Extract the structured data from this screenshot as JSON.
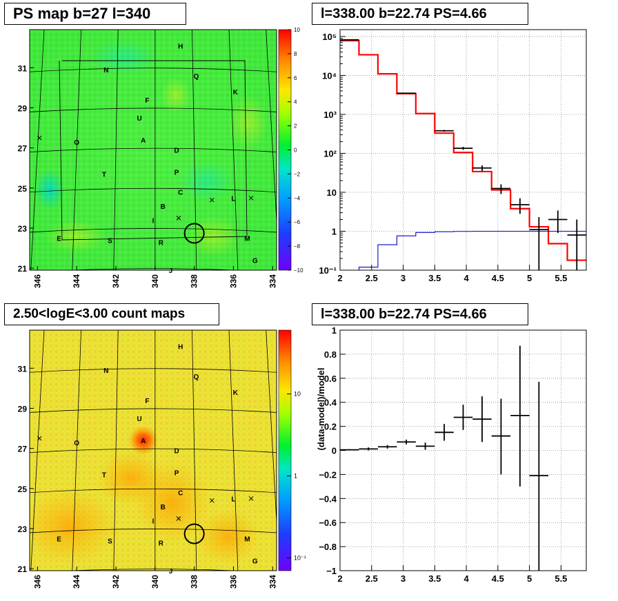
{
  "panels": {
    "ps_map": {
      "title": "PS map b=27 l=340",
      "x_ticks": [
        "346",
        "344",
        "342",
        "340",
        "338",
        "336",
        "334"
      ],
      "y_ticks": [
        "31",
        "29",
        "27",
        "25",
        "23",
        "21"
      ],
      "colorbar_ticks": [
        "10",
        "8",
        "6",
        "4",
        "2",
        "0",
        "−2",
        "−4",
        "−6",
        "−8",
        "−10"
      ]
    },
    "count_map": {
      "title": "2.50<logE<3.00 count maps",
      "x_ticks": [
        "346",
        "344",
        "342",
        "340",
        "338",
        "336",
        "334"
      ],
      "y_ticks": [
        "31",
        "29",
        "27",
        "25",
        "23",
        "21"
      ],
      "colorbar_ticks": [
        "10",
        "1",
        "10⁻¹"
      ]
    },
    "spectrum": {
      "title": "l=338.00 b=22.74 PS=4.66"
    },
    "residual": {
      "title": "l=338.00 b=22.74 PS=4.66"
    }
  },
  "map_labels": [
    {
      "name": "H",
      "l": 338.7,
      "b": 32.1
    },
    {
      "name": "N",
      "l": 342.5,
      "b": 30.9
    },
    {
      "name": "Q",
      "l": 337.9,
      "b": 30.6
    },
    {
      "name": "K",
      "l": 335.9,
      "b": 29.8
    },
    {
      "name": "F",
      "l": 340.4,
      "b": 29.4
    },
    {
      "name": "U",
      "l": 340.8,
      "b": 28.5
    },
    {
      "name": "O",
      "l": 344.0,
      "b": 27.3
    },
    {
      "name": "A",
      "l": 340.6,
      "b": 27.4
    },
    {
      "name": "D",
      "l": 338.9,
      "b": 26.9
    },
    {
      "name": "T",
      "l": 342.6,
      "b": 25.7
    },
    {
      "name": "P",
      "l": 338.9,
      "b": 25.8
    },
    {
      "name": "C",
      "l": 338.7,
      "b": 24.8
    },
    {
      "name": "L",
      "l": 336.0,
      "b": 24.5
    },
    {
      "name": "B",
      "l": 339.6,
      "b": 24.1
    },
    {
      "name": "I",
      "l": 340.1,
      "b": 23.4
    },
    {
      "name": "E",
      "l": 344.9,
      "b": 22.5
    },
    {
      "name": "S",
      "l": 342.3,
      "b": 22.4
    },
    {
      "name": "R",
      "l": 339.7,
      "b": 22.3
    },
    {
      "name": "M",
      "l": 335.3,
      "b": 22.5
    },
    {
      "name": "G",
      "l": 334.9,
      "b": 21.4
    },
    {
      "name": "J",
      "l": 339.2,
      "b": 20.9
    }
  ],
  "map_crosses": [
    {
      "l": 345.9,
      "b": 27.5
    },
    {
      "l": 337.1,
      "b": 24.4
    },
    {
      "l": 335.1,
      "b": 24.5
    },
    {
      "l": 338.8,
      "b": 23.5
    }
  ],
  "chart_data": [
    {
      "type": "heatmap",
      "title": "PS map b=27 l=340",
      "xlim": [
        346.4,
        333.8
      ],
      "ylim": [
        20.9,
        32.9
      ],
      "zlim": [
        -10,
        10
      ],
      "colorbar": "rainbow",
      "point_source": {
        "l": 338.0,
        "b": 22.74
      }
    },
    {
      "type": "heatmap",
      "title": "2.50<logE<3.00 count maps",
      "xlim": [
        346.4,
        333.8
      ],
      "ylim": [
        20.9,
        32.9
      ],
      "zlim": [
        0.07,
        60
      ],
      "zscale": "log",
      "colorbar": "rainbow",
      "point_source": {
        "l": 338.0,
        "b": 22.74
      },
      "hotspots": [
        {
          "name": "A",
          "l": 340.6,
          "b": 27.4
        }
      ]
    },
    {
      "type": "line",
      "title": "l=338.00 b=22.74 PS=4.66",
      "xlim": [
        2.0,
        5.9
      ],
      "ylim": [
        0.1,
        150000
      ],
      "yscale": "log",
      "y_ticks": [
        {
          "v": 0.1,
          "label": "10⁻¹"
        },
        {
          "v": 1,
          "label": "1"
        },
        {
          "v": 10,
          "label": "10"
        },
        {
          "v": 100,
          "label": "10²"
        },
        {
          "v": 1000,
          "label": "10³"
        },
        {
          "v": 10000,
          "label": "10⁴"
        },
        {
          "v": 100000,
          "label": "10⁵"
        }
      ],
      "x_ticks": [
        2,
        2.5,
        3,
        3.5,
        4,
        4.5,
        5,
        5.5
      ],
      "grid": true,
      "bin_edges": [
        2.0,
        2.3,
        2.6,
        2.9,
        3.2,
        3.5,
        3.8,
        4.1,
        4.4,
        4.7,
        5.0,
        5.3,
        5.6,
        5.9
      ],
      "series": [
        {
          "color": "#ff0000",
          "style": "step",
          "values": [
            78000,
            34000,
            11000,
            3400,
            1050,
            330,
            105,
            34,
            11.5,
            3.8,
            1.3,
            0.48,
            0.18
          ]
        },
        {
          "color": "#0000cc",
          "style": "step",
          "values": [
            0.1,
            0.12,
            0.45,
            0.76,
            0.93,
            0.97,
            0.99,
            1.0,
            1.0,
            1.0,
            1.0,
            1.0,
            1.0
          ]
        },
        {
          "color": "#000000",
          "style": "errorbar",
          "points": [
            {
              "x": 2.15,
              "y": 82000,
              "lo": 81500,
              "hi": 82500
            },
            {
              "x": 3.05,
              "y": 3500,
              "lo": 3440,
              "hi": 3560
            },
            {
              "x": 3.65,
              "y": 380,
              "lo": 360,
              "hi": 400
            },
            {
              "x": 3.95,
              "y": 135,
              "lo": 123,
              "hi": 147
            },
            {
              "x": 4.25,
              "y": 42,
              "lo": 35,
              "hi": 49
            },
            {
              "x": 4.55,
              "y": 12.5,
              "lo": 9,
              "hi": 16
            },
            {
              "x": 4.85,
              "y": 4.8,
              "lo": 2.8,
              "hi": 7
            },
            {
              "x": 5.15,
              "y": 1.1,
              "lo": 0.1,
              "hi": 2.3
            },
            {
              "x": 5.45,
              "y": 2.0,
              "lo": 0.9,
              "hi": 3.4
            },
            {
              "x": 5.75,
              "y": 0.8,
              "lo": 0.1,
              "hi": 2.0
            }
          ]
        }
      ]
    },
    {
      "type": "scatter",
      "title": "l=338.00 b=22.74 PS=4.66",
      "ylabel": "(data-model)/model",
      "xlim": [
        2.0,
        5.9
      ],
      "ylim": [
        -1,
        1
      ],
      "x_ticks": [
        2,
        2.5,
        3,
        3.5,
        4,
        4.5,
        5,
        5.5
      ],
      "y_ticks": [
        -1,
        -0.8,
        -0.6,
        -0.4,
        -0.2,
        0,
        0.2,
        0.4,
        0.6,
        0.8,
        1
      ],
      "grid": true,
      "points": [
        {
          "x": 2.15,
          "y": 0.005,
          "xerr": 0.15,
          "lo": 0.0,
          "hi": 0.01
        },
        {
          "x": 2.45,
          "y": 0.012,
          "xerr": 0.15,
          "lo": 0.0,
          "hi": 0.025
        },
        {
          "x": 2.75,
          "y": 0.03,
          "xerr": 0.15,
          "lo": 0.015,
          "hi": 0.045
        },
        {
          "x": 3.05,
          "y": 0.07,
          "xerr": 0.15,
          "lo": 0.05,
          "hi": 0.09
        },
        {
          "x": 3.35,
          "y": 0.035,
          "xerr": 0.15,
          "lo": 0.005,
          "hi": 0.065
        },
        {
          "x": 3.65,
          "y": 0.15,
          "xerr": 0.15,
          "lo": 0.08,
          "hi": 0.22
        },
        {
          "x": 3.95,
          "y": 0.275,
          "xerr": 0.15,
          "lo": 0.17,
          "hi": 0.38
        },
        {
          "x": 4.25,
          "y": 0.26,
          "xerr": 0.15,
          "lo": 0.07,
          "hi": 0.45
        },
        {
          "x": 4.55,
          "y": 0.12,
          "xerr": 0.15,
          "lo": -0.2,
          "hi": 0.43
        },
        {
          "x": 4.85,
          "y": 0.29,
          "xerr": 0.15,
          "lo": -0.3,
          "hi": 0.87
        },
        {
          "x": 5.15,
          "y": -0.21,
          "xerr": 0.15,
          "lo": -1.0,
          "hi": 0.57
        }
      ]
    }
  ]
}
